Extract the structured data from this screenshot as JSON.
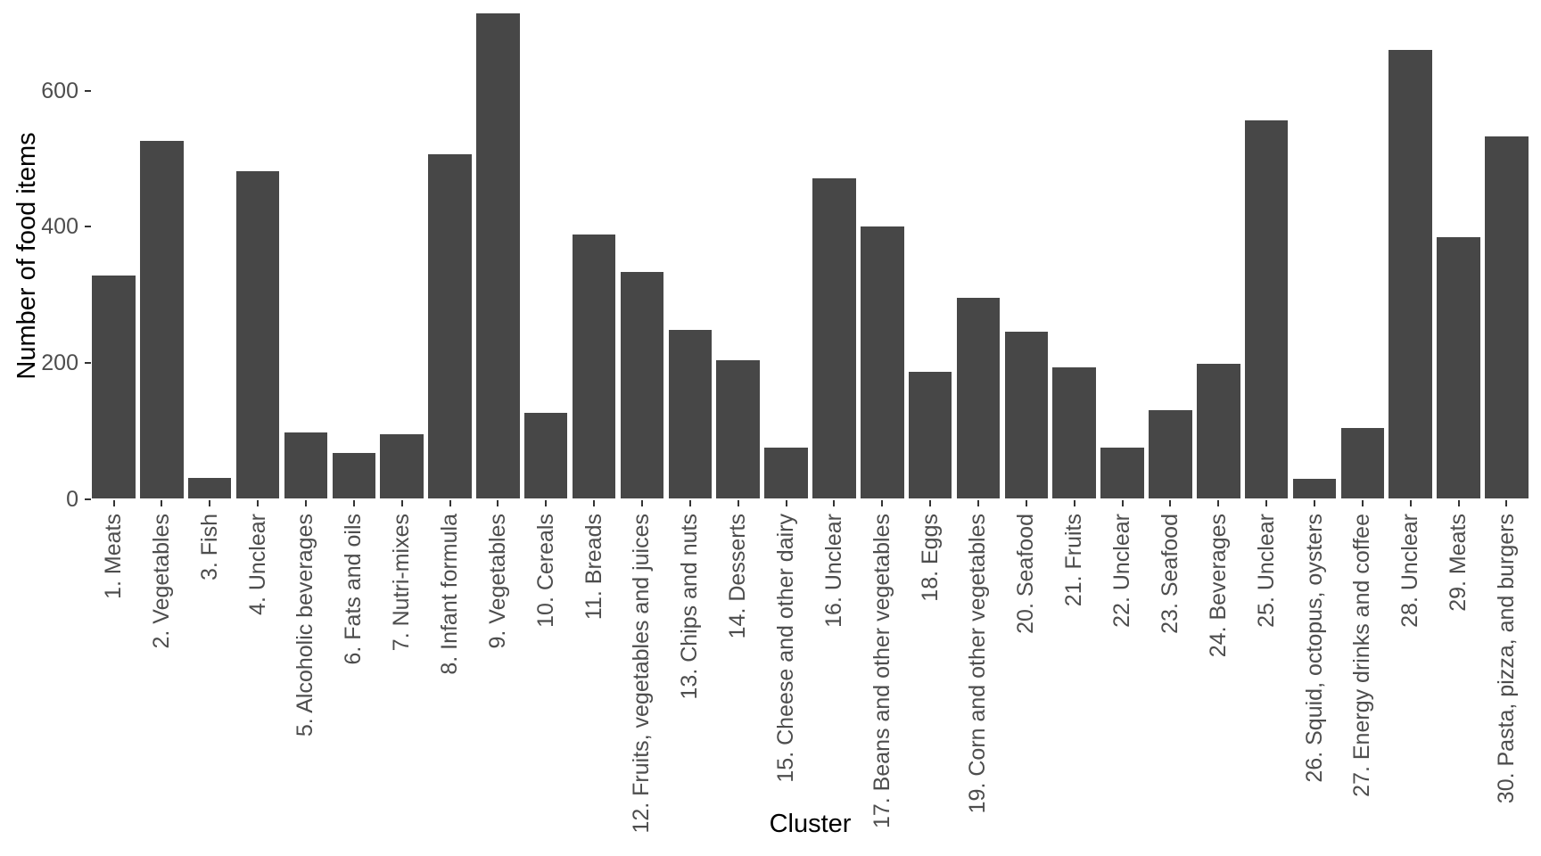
{
  "chart_data": {
    "type": "bar",
    "title": "",
    "xlabel": "Cluster",
    "ylabel": "Number of food items",
    "categories": [
      "1. Meats",
      "2. Vegetables",
      "3. Fish",
      "4. Unclear",
      "5. Alcoholic beverages",
      "6. Fats and oils",
      "7. Nutri-mixes",
      "8. Infant formula",
      "9. Vegetables",
      "10. Cereals",
      "11. Breads",
      "12. Fruits, vegetables and juices",
      "13. Chips and nuts",
      "14. Desserts",
      "15. Cheese and other dairy",
      "16. Unclear",
      "17. Beans and other vegetables",
      "18. Eggs",
      "19. Corn and other vegetables",
      "20. Seafood",
      "21. Fruits",
      "22. Unclear",
      "23. Seafood",
      "24. Beverages",
      "25. Unclear",
      "26. Squid, octopus, oysters",
      "27. Energy drinks and coffee",
      "28. Unclear",
      "29. Meats",
      "30. Pasta, pizza, and burgers"
    ],
    "values": [
      328,
      526,
      31,
      482,
      98,
      67,
      95,
      507,
      714,
      126,
      388,
      334,
      248,
      204,
      76,
      471,
      400,
      187,
      296,
      246,
      193,
      76,
      131,
      199,
      556,
      29,
      104,
      660,
      385,
      533
    ],
    "yticks": [
      0,
      200,
      400,
      600
    ],
    "ylim": [
      0,
      733
    ],
    "grid": false,
    "legend": "none",
    "colors": {
      "bar": "#474747",
      "tick_label": "#4d4d4d",
      "axis_title": "#000000",
      "tick_mark": "#333333",
      "background": "#ffffff"
    }
  }
}
